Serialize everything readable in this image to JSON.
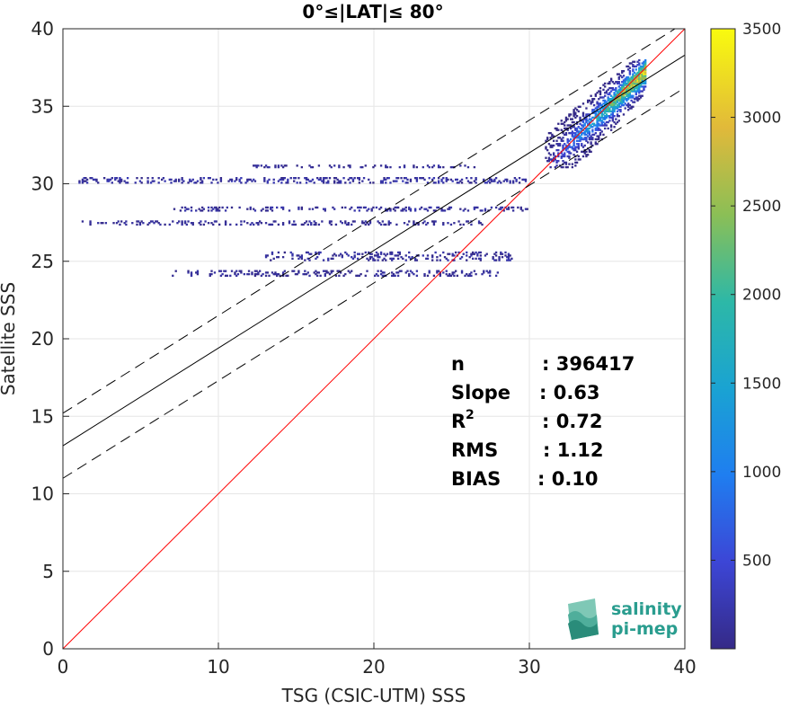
{
  "chart_data": {
    "type": "heatmap",
    "title": "0°≤|LAT|≤ 80°",
    "xlabel": "TSG (CSIC-UTM) SSS",
    "ylabel": "Satellite SSS",
    "xlim": [
      0,
      40
    ],
    "ylim": [
      0,
      40
    ],
    "xticks": [
      "0",
      "10",
      "20",
      "30",
      "40"
    ],
    "yticks": [
      "0",
      "5",
      "10",
      "15",
      "20",
      "25",
      "30",
      "35",
      "40"
    ],
    "grid": true,
    "colorbar": {
      "range": [
        0,
        3500
      ],
      "ticks": [
        "500",
        "1000",
        "1500",
        "2000",
        "2500",
        "3000",
        "3500"
      ],
      "colormap": "parula"
    },
    "lines": [
      {
        "kind": "identity",
        "color": "#ff0000",
        "style": "solid",
        "slope": 1.0,
        "intercept": 0
      },
      {
        "kind": "regression",
        "color": "#000000",
        "style": "solid",
        "slope": 0.63,
        "intercept": 13.1
      },
      {
        "kind": "regression-upper",
        "color": "#000000",
        "style": "dashed",
        "slope": 0.63,
        "intercept": 15.2
      },
      {
        "kind": "regression-lower",
        "color": "#000000",
        "style": "dashed",
        "slope": 0.63,
        "intercept": 11.0
      }
    ],
    "density_clusters": [
      {
        "x": [
          31,
          37.5
        ],
        "y": [
          31,
          38
        ],
        "peak": 3500
      },
      {
        "x": [
          1,
          30
        ],
        "y": [
          30,
          30.4
        ],
        "peak": 300
      },
      {
        "x": [
          1,
          27
        ],
        "y": [
          27.3,
          27.6
        ],
        "peak": 200
      },
      {
        "x": [
          7,
          30
        ],
        "y": [
          28.2,
          28.5
        ],
        "peak": 250
      },
      {
        "x": [
          7,
          28
        ],
        "y": [
          24,
          24.4
        ],
        "peak": 200
      },
      {
        "x": [
          13,
          29
        ],
        "y": [
          25.0,
          25.6
        ],
        "peak": 250
      },
      {
        "x": [
          12,
          27
        ],
        "y": [
          31.0,
          31.2
        ],
        "peak": 200
      }
    ],
    "stats": [
      {
        "label": "n",
        "value": ": 396417"
      },
      {
        "label": "Slope",
        "value": ": 0.63"
      },
      {
        "label": "R",
        "sup": "2",
        "value": ": 0.72"
      },
      {
        "label": "RMS",
        "value": ": 1.12"
      },
      {
        "label": "BIAS",
        "value": ": 0.10"
      }
    ]
  },
  "logo": {
    "line1": "salinity",
    "line2": "pi-mep",
    "color": "#2a9d8f"
  }
}
